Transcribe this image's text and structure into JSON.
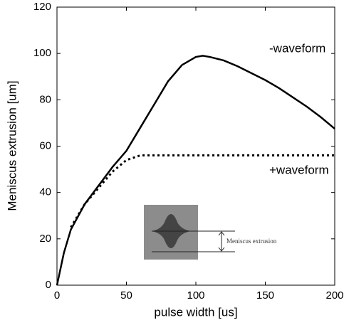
{
  "chart_data": {
    "type": "line",
    "xlabel": "pulse width [us]",
    "ylabel": "Meniscus extrusion [um]",
    "xlim": [
      0,
      200
    ],
    "ylim": [
      0,
      120
    ],
    "xticks": [
      0,
      50,
      100,
      150,
      200
    ],
    "yticks": [
      0,
      20,
      40,
      60,
      80,
      100,
      120
    ],
    "grid": false,
    "annotations": [
      "-waveform",
      "+waveform",
      "Meniscus extrusion"
    ],
    "series": [
      {
        "name": "-waveform",
        "color": "#000000",
        "line_style": "solid",
        "x": [
          0,
          5,
          10,
          20,
          30,
          40,
          50,
          60,
          70,
          80,
          90,
          100,
          105,
          110,
          120,
          130,
          140,
          150,
          160,
          170,
          180,
          190,
          200
        ],
        "values": [
          0,
          14,
          24,
          35,
          43,
          51,
          58,
          68,
          78,
          88,
          95,
          98.5,
          99,
          98.5,
          97,
          94.5,
          91.5,
          88.5,
          85,
          81,
          77,
          72.5,
          67.5
        ]
      },
      {
        "name": "+waveform",
        "color": "#000000",
        "line_style": "dotted",
        "x": [
          10,
          15,
          20,
          30,
          40,
          50,
          60,
          65,
          70,
          80,
          100,
          120,
          150,
          180,
          200
        ],
        "values": [
          25,
          30,
          35,
          42,
          49,
          54,
          56,
          56,
          56,
          56,
          56,
          56,
          56,
          56,
          56
        ]
      }
    ]
  }
}
